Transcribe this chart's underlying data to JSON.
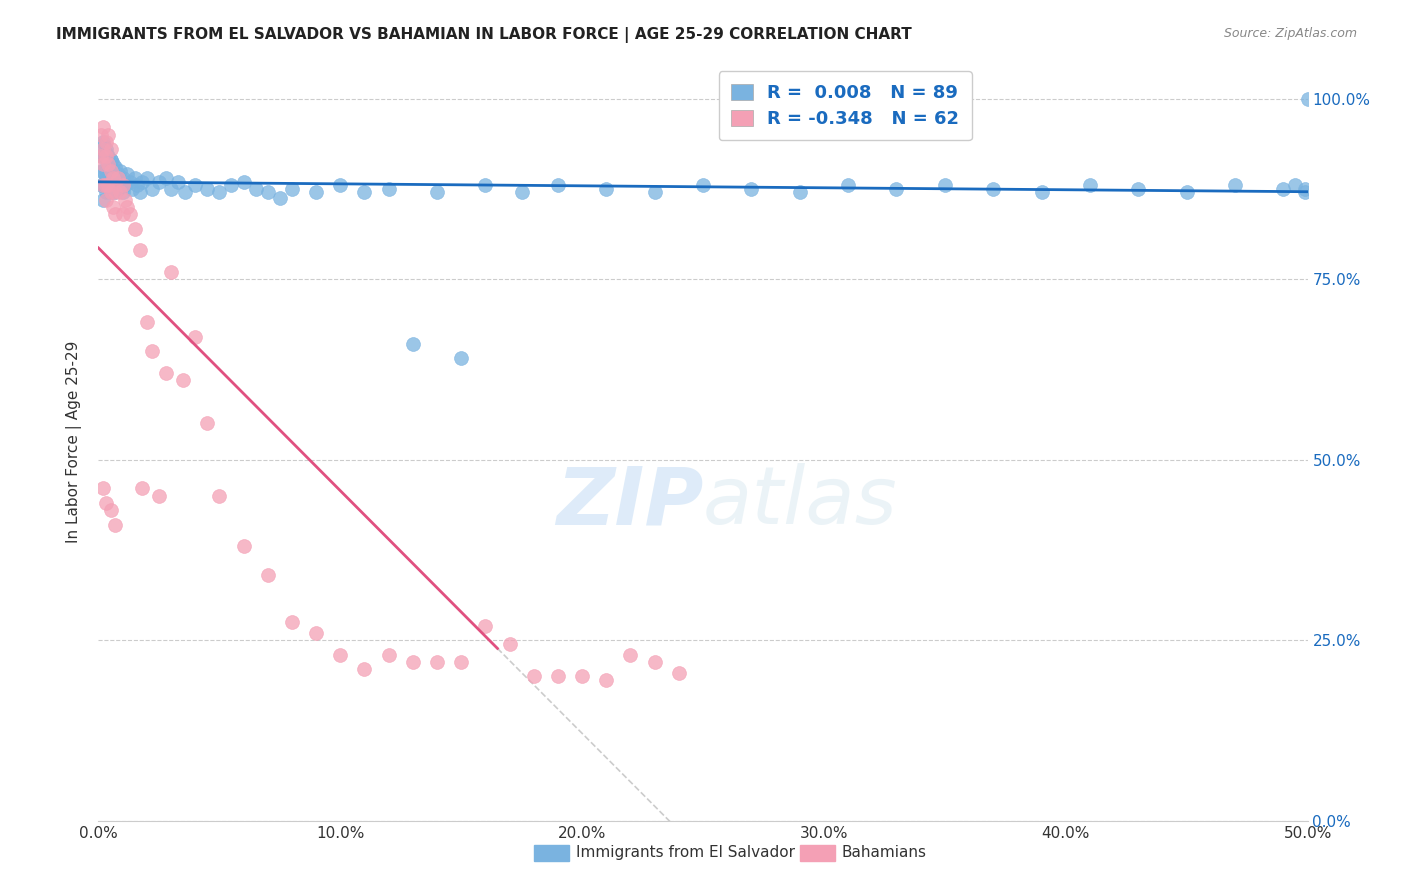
{
  "title": "IMMIGRANTS FROM EL SALVADOR VS BAHAMIAN IN LABOR FORCE | AGE 25-29 CORRELATION CHART",
  "source": "Source: ZipAtlas.com",
  "ylabel": "In Labor Force | Age 25-29",
  "xlim": [
    0.0,
    0.5
  ],
  "ylim": [
    0.0,
    1.05
  ],
  "xtick_labels": [
    "0.0%",
    "10.0%",
    "20.0%",
    "30.0%",
    "40.0%",
    "50.0%"
  ],
  "xtick_vals": [
    0.0,
    0.1,
    0.2,
    0.3,
    0.4,
    0.5
  ],
  "ytick_labels_right": [
    "100.0%",
    "75.0%",
    "50.0%",
    "25.0%",
    "0.0%"
  ],
  "ytick_vals": [
    1.0,
    0.75,
    0.5,
    0.25,
    0.0
  ],
  "grid_color": "#cccccc",
  "background_color": "#ffffff",
  "blue_color": "#7ab3e0",
  "pink_color": "#f4a0b5",
  "trendline_blue": "#1a6bbf",
  "trendline_pink": "#e05080",
  "trendline_gray": "#cccccc",
  "R_blue": 0.008,
  "N_blue": 89,
  "R_pink": -0.348,
  "N_pink": 62,
  "legend_label_blue": "Immigrants from El Salvador",
  "legend_label_pink": "Bahamians",
  "watermark_zip": "ZIP",
  "watermark_atlas": "atlas",
  "blue_x": [
    0.001,
    0.001,
    0.001,
    0.002,
    0.002,
    0.002,
    0.002,
    0.002,
    0.003,
    0.003,
    0.003,
    0.003,
    0.003,
    0.004,
    0.004,
    0.004,
    0.004,
    0.005,
    0.005,
    0.005,
    0.005,
    0.006,
    0.006,
    0.006,
    0.007,
    0.007,
    0.007,
    0.008,
    0.008,
    0.009,
    0.009,
    0.01,
    0.01,
    0.011,
    0.012,
    0.013,
    0.014,
    0.015,
    0.016,
    0.017,
    0.018,
    0.02,
    0.022,
    0.025,
    0.028,
    0.03,
    0.033,
    0.036,
    0.04,
    0.045,
    0.05,
    0.055,
    0.06,
    0.065,
    0.07,
    0.075,
    0.08,
    0.09,
    0.1,
    0.11,
    0.12,
    0.13,
    0.14,
    0.15,
    0.16,
    0.175,
    0.19,
    0.21,
    0.23,
    0.25,
    0.27,
    0.29,
    0.31,
    0.33,
    0.35,
    0.37,
    0.39,
    0.41,
    0.43,
    0.45,
    0.47,
    0.49,
    0.495,
    0.499,
    0.499,
    0.5,
    0.002,
    0.003,
    0.005
  ],
  "blue_y": [
    0.88,
    0.9,
    0.92,
    0.86,
    0.88,
    0.9,
    0.92,
    0.94,
    0.87,
    0.89,
    0.9,
    0.92,
    0.93,
    0.88,
    0.89,
    0.91,
    0.92,
    0.87,
    0.885,
    0.9,
    0.915,
    0.88,
    0.895,
    0.91,
    0.87,
    0.89,
    0.905,
    0.875,
    0.895,
    0.88,
    0.9,
    0.87,
    0.89,
    0.88,
    0.895,
    0.885,
    0.875,
    0.89,
    0.88,
    0.87,
    0.885,
    0.89,
    0.875,
    0.885,
    0.89,
    0.875,
    0.885,
    0.87,
    0.88,
    0.875,
    0.87,
    0.88,
    0.885,
    0.875,
    0.87,
    0.862,
    0.875,
    0.87,
    0.88,
    0.87,
    0.875,
    0.66,
    0.87,
    0.64,
    0.88,
    0.87,
    0.88,
    0.875,
    0.87,
    0.88,
    0.875,
    0.87,
    0.88,
    0.875,
    0.88,
    0.875,
    0.87,
    0.88,
    0.875,
    0.87,
    0.88,
    0.875,
    0.88,
    0.875,
    0.87,
    1.0,
    0.935,
    0.925,
    0.915
  ],
  "pink_x": [
    0.001,
    0.001,
    0.002,
    0.002,
    0.002,
    0.002,
    0.003,
    0.003,
    0.003,
    0.003,
    0.004,
    0.004,
    0.004,
    0.005,
    0.005,
    0.005,
    0.006,
    0.006,
    0.007,
    0.007,
    0.008,
    0.009,
    0.01,
    0.01,
    0.011,
    0.012,
    0.013,
    0.015,
    0.017,
    0.018,
    0.02,
    0.022,
    0.025,
    0.028,
    0.03,
    0.035,
    0.04,
    0.045,
    0.05,
    0.06,
    0.07,
    0.08,
    0.09,
    0.1,
    0.11,
    0.12,
    0.13,
    0.14,
    0.15,
    0.16,
    0.17,
    0.18,
    0.19,
    0.2,
    0.21,
    0.22,
    0.23,
    0.24,
    0.002,
    0.003,
    0.005,
    0.007
  ],
  "pink_y": [
    0.92,
    0.95,
    0.93,
    0.91,
    0.88,
    0.96,
    0.94,
    0.92,
    0.88,
    0.86,
    0.95,
    0.91,
    0.88,
    0.93,
    0.9,
    0.87,
    0.89,
    0.85,
    0.87,
    0.84,
    0.89,
    0.87,
    0.88,
    0.84,
    0.86,
    0.85,
    0.84,
    0.82,
    0.79,
    0.46,
    0.69,
    0.65,
    0.45,
    0.62,
    0.76,
    0.61,
    0.67,
    0.55,
    0.45,
    0.38,
    0.34,
    0.275,
    0.26,
    0.23,
    0.21,
    0.23,
    0.22,
    0.22,
    0.22,
    0.27,
    0.245,
    0.2,
    0.2,
    0.2,
    0.195,
    0.23,
    0.22,
    0.205,
    0.46,
    0.44,
    0.43,
    0.41
  ]
}
